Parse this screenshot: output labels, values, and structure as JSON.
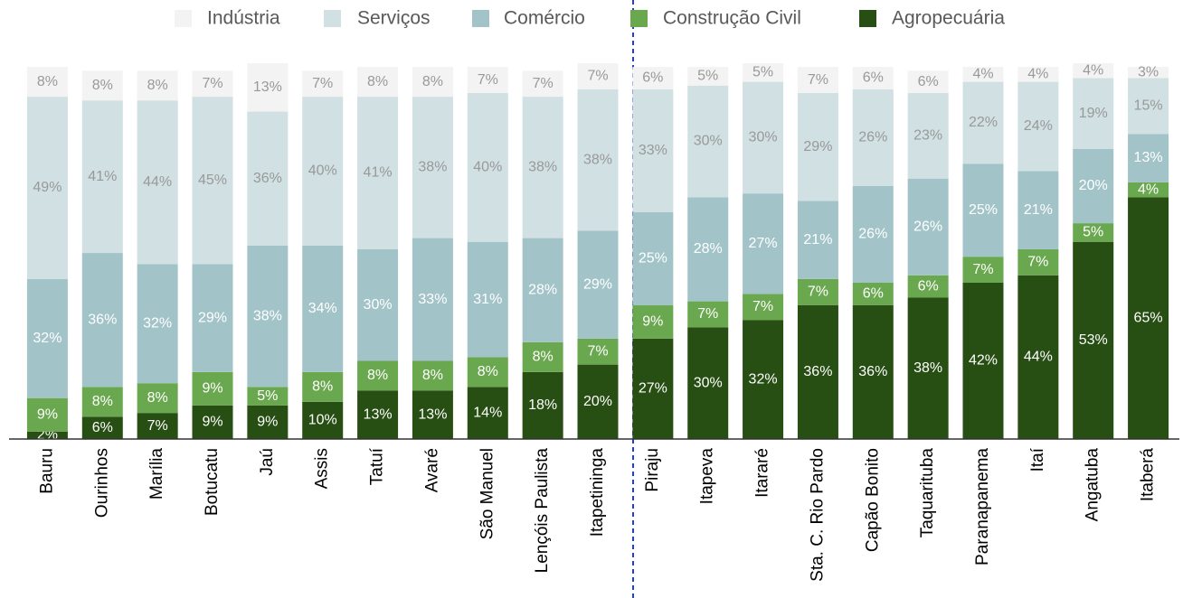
{
  "chart_data": {
    "type": "stacked_bar",
    "categories": [
      "Bauru",
      "Ourinhos",
      "Marília",
      "Botucatu",
      "Jaú",
      "Assis",
      "Tatuí",
      "Avaré",
      "São Manuel",
      "Lençóis Paulista",
      "Itapetininga",
      "Piraju",
      "Itapeva",
      "Itararé",
      "Sta. C. Rio Pardo",
      "Capão Bonito",
      "Taquarituba",
      "Paranapanema",
      "Itaí",
      "Angatuba",
      "Itaberá"
    ],
    "series": [
      {
        "name": "Agropecuária",
        "color": "#274e13",
        "label_color": "#ffffff",
        "values": [
          2,
          6,
          7,
          9,
          9,
          10,
          13,
          13,
          14,
          18,
          20,
          27,
          30,
          32,
          36,
          36,
          38,
          42,
          44,
          53,
          65
        ],
        "value_labels": [
          "2%",
          "6%",
          "7%",
          "9%",
          "9%",
          "10%",
          "13%",
          "13%",
          "14%",
          "18%",
          "20%",
          "27%",
          "30%",
          "32%",
          "36%",
          "36%",
          "38%",
          "42%",
          "44%",
          "53%",
          "65%"
        ]
      },
      {
        "name": "Construção Civil",
        "color": "#6aa84f",
        "label_color": "#ffffff",
        "values": [
          9,
          8,
          8,
          9,
          5,
          8,
          8,
          8,
          8,
          8,
          7,
          9,
          7,
          7,
          7,
          6,
          6,
          7,
          7,
          5,
          4
        ],
        "value_labels": [
          "9%",
          "8%",
          "8%",
          "9%",
          "5%",
          "8%",
          "8%",
          "8%",
          "8%",
          "8%",
          "7%",
          "9%",
          "7%",
          "7%",
          "7%",
          "6%",
          "6%",
          "7%",
          "7%",
          "5%",
          "4%"
        ]
      },
      {
        "name": "Comércio",
        "color": "#a2c4c9",
        "label_color": "#ffffff",
        "values": [
          32,
          36,
          32,
          29,
          38,
          34,
          30,
          33,
          31,
          28,
          29,
          25,
          28,
          27,
          21,
          26,
          26,
          25,
          21,
          20,
          13
        ],
        "value_labels": [
          "32%",
          "36%",
          "32%",
          "29%",
          "38%",
          "34%",
          "30%",
          "33%",
          "31%",
          "28%",
          "29%",
          "25%",
          "28%",
          "27%",
          "21%",
          "26%",
          "26%",
          "25%",
          "21%",
          "20%",
          "13%"
        ]
      },
      {
        "name": "Serviços",
        "color": "#d0e0e3",
        "label_color": "#999999",
        "values": [
          49,
          41,
          44,
          45,
          36,
          40,
          41,
          38,
          40,
          38,
          38,
          33,
          30,
          30,
          29,
          26,
          23,
          22,
          24,
          19,
          15
        ],
        "value_labels": [
          "49%",
          "41%",
          "44%",
          "45%",
          "36%",
          "40%",
          "41%",
          "38%",
          "40%",
          "38%",
          "38%",
          "33%",
          "30%",
          "30%",
          "29%",
          "26%",
          "23%",
          "22%",
          "24%",
          "19%",
          "15%"
        ]
      },
      {
        "name": "Indústria",
        "color": "#f3f3f3",
        "label_color": "#999999",
        "values": [
          8,
          8,
          8,
          7,
          13,
          7,
          8,
          8,
          7,
          7,
          7,
          6,
          5,
          5,
          7,
          6,
          6,
          4,
          4,
          4,
          3
        ],
        "value_labels": [
          "8%",
          "8%",
          "8%",
          "7%",
          "13%",
          "7%",
          "8%",
          "8%",
          "7%",
          "7%",
          "7%",
          "6%",
          "5%",
          "5%",
          "7%",
          "6%",
          "6%",
          "4%",
          "4%",
          "4%",
          "3%"
        ]
      }
    ],
    "legend_order": [
      4,
      3,
      2,
      1,
      0
    ]
  }
}
